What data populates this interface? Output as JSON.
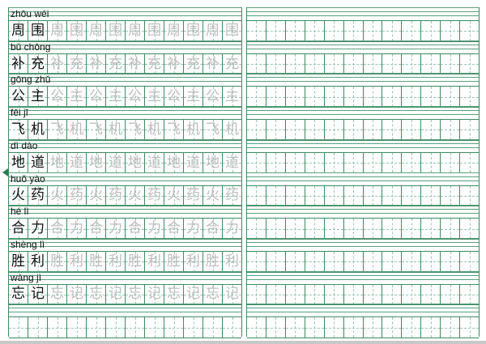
{
  "colors": {
    "grid": "#3d8a63",
    "trace": "#bcbcbc",
    "text": "#111111"
  },
  "left_page": {
    "rows": [
      {
        "pinyin": "zhōu wéi",
        "chars": [
          "周",
          "围"
        ]
      },
      {
        "pinyin": "bǔ chōng",
        "chars": [
          "补",
          "充"
        ]
      },
      {
        "pinyin": "gōng zhǔ",
        "chars": [
          "公",
          "主"
        ]
      },
      {
        "pinyin": "fēi jī",
        "chars": [
          "飞",
          "机"
        ]
      },
      {
        "pinyin": "dì dào",
        "chars": [
          "地",
          "道"
        ]
      },
      {
        "pinyin": "huǒ yào",
        "chars": [
          "火",
          "药"
        ]
      },
      {
        "pinyin": "hé lì",
        "chars": [
          "合",
          "力"
        ]
      },
      {
        "pinyin": "shèng lì",
        "chars": [
          "胜",
          "利"
        ]
      },
      {
        "pinyin": "wàng jì",
        "chars": [
          "忘",
          "记"
        ]
      },
      {
        "pinyin": "",
        "chars": []
      }
    ],
    "boxes_per_row": 12
  },
  "right_page": {
    "rows": 10,
    "boxes_per_row": 12
  },
  "page_nav": {
    "icon": "triangle-left-icon"
  }
}
